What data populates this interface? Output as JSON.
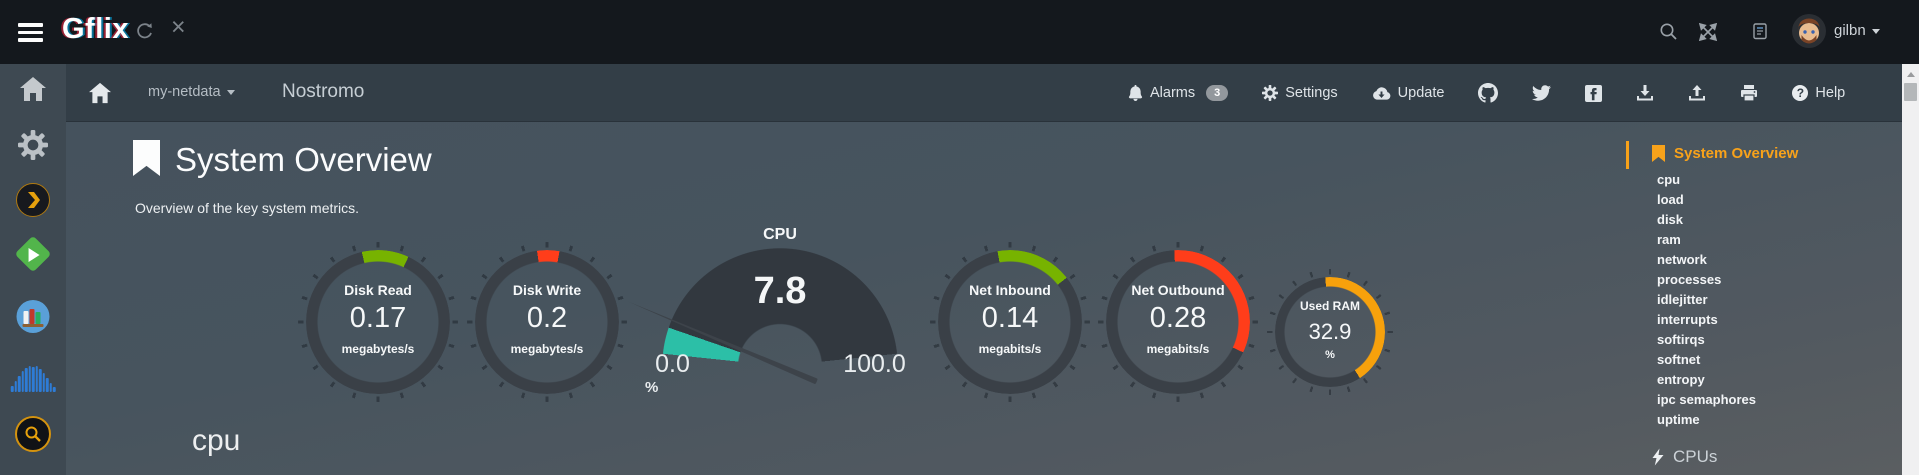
{
  "topbar": {
    "logo": "Gflix",
    "user": "gilbn"
  },
  "navbar": {
    "server": "my-netdata",
    "hostname": "Nostromo",
    "alarms_label": "Alarms",
    "alarms_count": "3",
    "settings_label": "Settings",
    "update_label": "Update",
    "help_label": "Help"
  },
  "main": {
    "title": "System Overview",
    "subtitle": "Overview of the key system metrics.",
    "section_heading": "cpu"
  },
  "chart_data": [
    {
      "type": "gauge",
      "title": "Disk Read",
      "value": 0.17,
      "value_str": "0.17",
      "units": "megabytes/s",
      "color": "#77b300",
      "arc_start_deg": -13,
      "arc_span_deg": 38
    },
    {
      "type": "gauge",
      "title": "Disk Write",
      "value": 0.2,
      "value_str": "0.2",
      "units": "megabytes/s",
      "color": "#ff3d1a",
      "arc_start_deg": -8,
      "arc_span_deg": 18
    },
    {
      "type": "gauge",
      "title": "CPU",
      "value": 7.8,
      "value_str": "7.8",
      "units": "%",
      "min": 0.0,
      "max": 100.0,
      "min_str": "0.0",
      "max_str": "100.0",
      "color": "#2cbfa7",
      "start_deg": 276,
      "fill_deg": 13,
      "span_deg": 168,
      "needle_deg": 293
    },
    {
      "type": "gauge",
      "title": "Net Inbound",
      "value": 0.14,
      "value_str": "0.14",
      "units": "megabits/s",
      "color": "#77b300",
      "arc_start_deg": -10,
      "arc_span_deg": 62
    },
    {
      "type": "gauge",
      "title": "Net Outbound",
      "value": 0.28,
      "value_str": "0.28",
      "units": "megabits/s",
      "color": "#ff3d1a",
      "arc_start_deg": -3,
      "arc_span_deg": 118
    },
    {
      "type": "gauge",
      "title": "Used RAM",
      "value": 32.9,
      "value_str": "32.9",
      "units": "%",
      "color": "#f7a10c",
      "arc_start_deg": -5,
      "arc_span_deg": 152
    }
  ],
  "toc": {
    "active_label": "System Overview",
    "items": [
      "cpu",
      "load",
      "disk",
      "ram",
      "network",
      "processes",
      "idlejitter",
      "interrupts",
      "softirqs",
      "softnet",
      "entropy",
      "ipc semaphores",
      "uptime"
    ],
    "cpus_label": "CPUs"
  },
  "icons": {
    "topbar": [
      "hamburger-icon",
      "refresh-icon",
      "close-icon",
      "search-icon",
      "fullscreen-icon",
      "changelog-book-icon",
      "avatar",
      "caret-down-icon"
    ],
    "leftrail": [
      "home-icon",
      "gear-icon",
      "plex-icon",
      "emby-icon",
      "library-books-icon",
      "soundwave-icon",
      "search-app-icon"
    ],
    "navbar": [
      "home-icon",
      "bell-icon",
      "gear-icon",
      "cloud-update-icon",
      "github-icon",
      "twitter-icon",
      "facebook-icon",
      "download-icon",
      "upload-icon",
      "printer-icon",
      "help-icon"
    ]
  },
  "colors": {
    "accent_orange": "#f8a21a",
    "ring": "#3a4047",
    "fan": "#32383f",
    "green": "#77b300",
    "red": "#ff3d1a",
    "teal": "#2cbfa7",
    "orange": "#f7a10c"
  }
}
